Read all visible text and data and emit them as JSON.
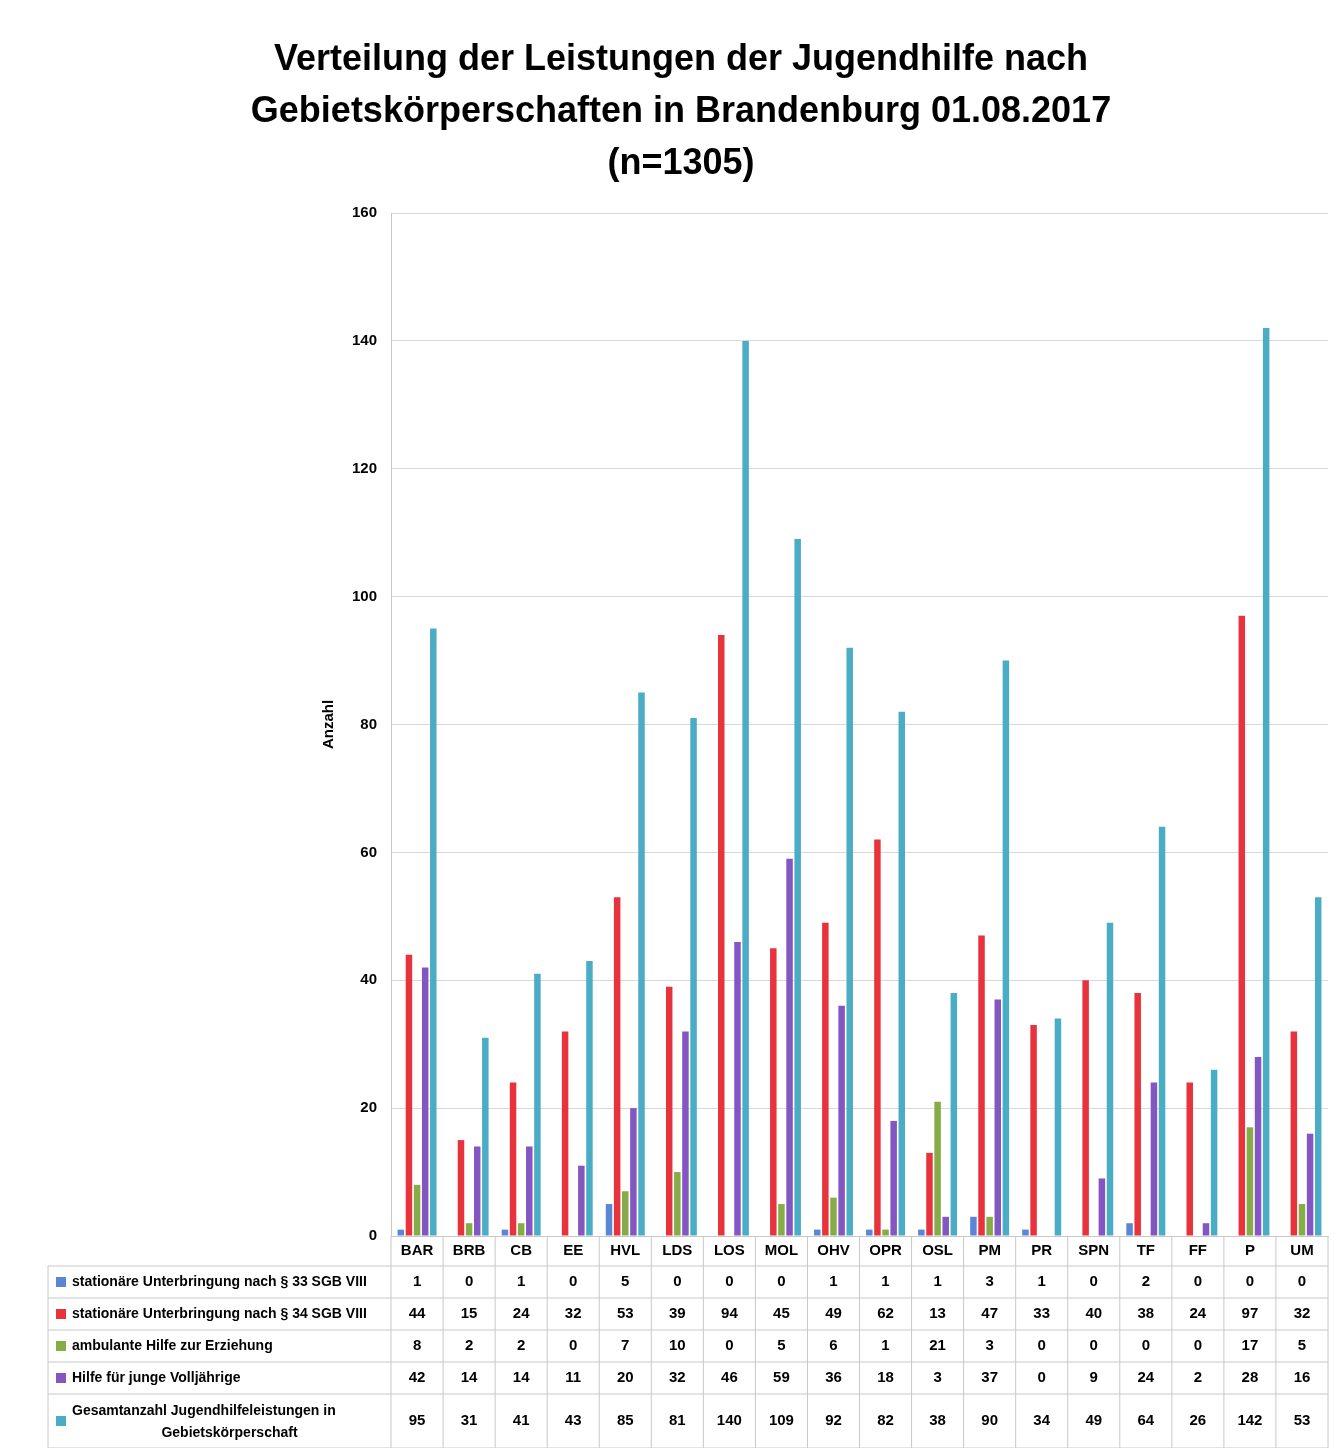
{
  "chart_data": {
    "type": "bar",
    "title": "Verteilung der Leistungen der Jugendhilfe nach Gebietskörperschaften in Brandenburg 01.08.2017 (n=1305)",
    "ylabel": "Anzahl",
    "categories": [
      "BAR",
      "BRB",
      "CB",
      "EE",
      "HVL",
      "LDS",
      "LOS",
      "MOL",
      "OHV",
      "OPR",
      "OSL",
      "PM",
      "PR",
      "SPN",
      "TF",
      "FF",
      "P",
      "UM"
    ],
    "series": [
      {
        "name": "stationäre Unterbringung nach § 33 SGB VIII",
        "color": "#5b86d6",
        "values": [
          1,
          0,
          1,
          0,
          5,
          0,
          0,
          0,
          1,
          1,
          1,
          3,
          1,
          0,
          2,
          0,
          0,
          0
        ]
      },
      {
        "name": "stationäre Unterbringung nach § 34 SGB VIII",
        "color": "#e8333c",
        "values": [
          44,
          15,
          24,
          32,
          53,
          39,
          94,
          45,
          49,
          62,
          13,
          47,
          33,
          40,
          38,
          24,
          97,
          32
        ]
      },
      {
        "name": "ambulante Hilfe zur Erziehung",
        "color": "#86ac48",
        "values": [
          8,
          2,
          2,
          0,
          7,
          10,
          0,
          5,
          6,
          1,
          21,
          3,
          0,
          0,
          0,
          0,
          17,
          5
        ]
      },
      {
        "name": "Hilfe für junge Volljährige",
        "color": "#8456c2",
        "values": [
          42,
          14,
          14,
          11,
          20,
          32,
          46,
          59,
          36,
          18,
          3,
          37,
          0,
          9,
          24,
          2,
          28,
          16
        ]
      },
      {
        "name": "Gesamtanzahl Jugendhilfeleistungen in Gebietskörperschaft",
        "color": "#4bacc6",
        "values": [
          95,
          31,
          41,
          43,
          85,
          81,
          140,
          109,
          92,
          82,
          38,
          90,
          34,
          49,
          64,
          26,
          142,
          53
        ]
      }
    ],
    "ylim": [
      0,
      160
    ],
    "yticks": [
      0,
      20,
      40,
      60,
      80,
      100,
      120,
      140,
      160
    ],
    "grid": "y",
    "data_labels": true,
    "legend": "bottom"
  }
}
